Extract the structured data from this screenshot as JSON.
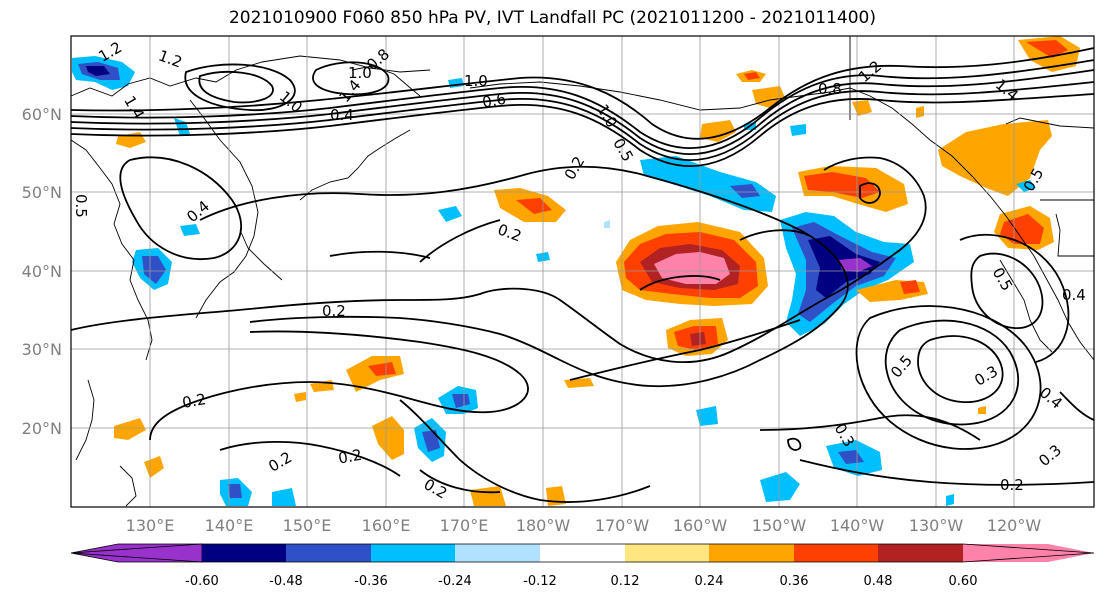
{
  "title": "2021010900 F060 850 hPa PV, IVT Landfall PC (2021011200 - 2021011400)",
  "latitude_labels": [
    "60°N",
    "50°N",
    "40°N",
    "30°N",
    "20°N"
  ],
  "longitude_labels": [
    "130°E",
    "140°E",
    "150°E",
    "160°E",
    "170°E",
    "180°W",
    "170°W",
    "160°W",
    "150°W",
    "140°W",
    "130°W",
    "120°W"
  ],
  "colorbar": {
    "ticks": [
      "-0.60",
      "-0.48",
      "-0.36",
      "-0.24",
      "-0.12",
      "0.12",
      "0.24",
      "0.36",
      "0.48",
      "0.60"
    ],
    "colors": [
      "#9932cc",
      "#000080",
      "#3050c8",
      "#00bfff",
      "#b0e2ff",
      "#ffffff",
      "#ffe680",
      "#ffa500",
      "#ff4000",
      "#b22222",
      "#ff82ab"
    ]
  },
  "contour_labels": {
    "nw_a": "1.2",
    "nw_b": "1.2",
    "nw_c": "1.4",
    "nw_d": "1.0",
    "nw_e": "0.8",
    "nw_f": "1.4",
    "nw_g": "1.0",
    "nw_h": "1.0",
    "nw_i": "0.6",
    "nw_j": "0.4",
    "west_a": "0.5",
    "west_b": "0.4",
    "mid_a": "0.2",
    "mid_b": "0.2",
    "mid_c": "0.2",
    "mid_d": "0.2",
    "mid_e": "0.2",
    "mid_f": "0.2",
    "mid_g": "0.2",
    "ne_a": "0.8",
    "ne_b": "1.2",
    "ne_c": "1.4",
    "ne_d": "0.5",
    "se_a": "0.5",
    "se_b": "0.3",
    "se_c": "0.4",
    "se_d": "0.3",
    "se_e": "0.2",
    "se_f": "0.3",
    "se_g": "0.5",
    "se_h": "0.4",
    "jet_a": "1.0",
    "jet_b": "0.5"
  }
}
